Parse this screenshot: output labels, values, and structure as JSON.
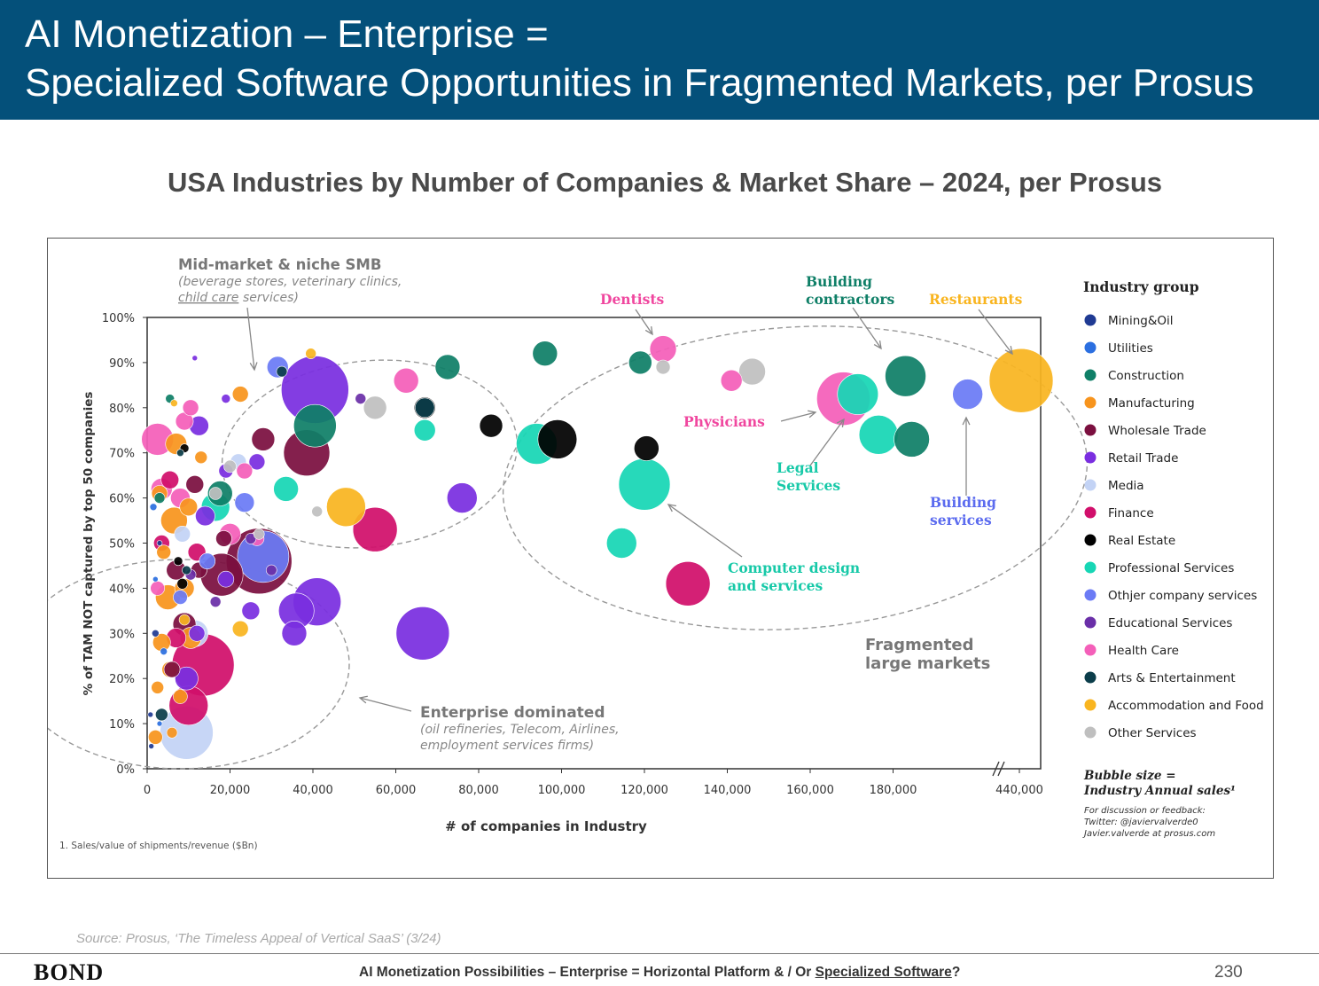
{
  "header": {
    "line1": "AI Monetization – Enterprise =",
    "line2": "Specialized Software Opportunities in Fragmented Markets, per Prosus"
  },
  "subtitle": "USA Industries by Number of Companies & Market Share – 2024, per Prosus",
  "source": "Source: Prosus, ‘The Timeless Appeal of Vertical SaaS’ (3/24)",
  "footer": {
    "logo": "BOND",
    "text_prefix": "AI Monetization Possibilities – Enterprise = Horizontal Platform & / Or ",
    "text_underlined": "Specialized Software",
    "text_suffix": "?",
    "page_number": "230"
  },
  "chart_data": {
    "type": "scatter",
    "xlabel": "# of companies in Industry",
    "ylabel": "% of TAM NOT captured by top 50 companies",
    "xlim": [
      0,
      210000
    ],
    "ylim": [
      0,
      100
    ],
    "x_ticks": [
      "0",
      "20,000",
      "40,000",
      "60,000",
      "80,000",
      "100,000",
      "120,000",
      "140,000",
      "160,000",
      "180,000",
      "440,000"
    ],
    "y_ticks": [
      "0%",
      "10%",
      "20%",
      "30%",
      "40%",
      "50%",
      "60%",
      "70%",
      "80%",
      "90%",
      "100%"
    ],
    "axis_break": "between 200,000 and 440,000",
    "footnote": "1. Sales/value of shipments/revenue ($Bn)",
    "legend": {
      "title": "Industry group",
      "placement": "right",
      "items": [
        {
          "name": "Mining&Oil",
          "color": "#1f3a93"
        },
        {
          "name": "Utilities",
          "color": "#2b6fe0"
        },
        {
          "name": "Construction",
          "color": "#0f7f67"
        },
        {
          "name": "Manufacturing",
          "color": "#f7941d"
        },
        {
          "name": "Wholesale Trade",
          "color": "#7b0f3f"
        },
        {
          "name": "Retail Trade",
          "color": "#7a2ee0"
        },
        {
          "name": "Media",
          "color": "#c3d3f5"
        },
        {
          "name": "Finance",
          "color": "#d10f6b"
        },
        {
          "name": "Real Estate",
          "color": "#000000"
        },
        {
          "name": "Professional Services",
          "color": "#17d6b5"
        },
        {
          "name": "Othjer company services",
          "color": "#6b7bf5"
        },
        {
          "name": "Educational Services",
          "color": "#6a2fa8"
        },
        {
          "name": "Health Care",
          "color": "#f45fb9"
        },
        {
          "name": "Arts & Entertainment",
          "color": "#0b3d4a"
        },
        {
          "name": "Accommodation and Food",
          "color": "#f9b520"
        },
        {
          "name": "Other Services",
          "color": "#bfbfbf"
        }
      ],
      "bubble_size_line1": "Bubble size =",
      "bubble_size_line2": "Industry Annual sales¹",
      "contact_line1": "For discussion or feedback:",
      "contact_line2": "Twitter: @javiervalverde0",
      "contact_line3": "Javier.valverde at prosus.com"
    },
    "annotations": {
      "midmarket_title": "Mid-market & niche SMB",
      "midmarket_sub1": "(beverage stores, veterinary clinics,",
      "midmarket_sub2_u": "child care",
      "midmarket_sub2_rest": " services)",
      "enterprise_title": "Enterprise dominated",
      "enterprise_sub1": "(oil refineries, Telecom, Airlines,",
      "enterprise_sub2": "employment services firms)",
      "fragmented_1": "Fragmented",
      "fragmented_2": "large markets",
      "dentists": "Dentists",
      "building_contractors_1": "Building",
      "building_contractors_2": "contractors",
      "restaurants": "Restaurants",
      "physicians": "Physicians",
      "legal_1": "Legal",
      "legal_2": "Services",
      "building_services_1": "Building",
      "building_services_2": "services",
      "computer_design_1": "Computer design",
      "computer_design_2": "and services"
    },
    "series": [
      {
        "name": "Mining&Oil",
        "points": [
          {
            "x": 1000,
            "y": 5,
            "s": 3
          },
          {
            "x": 3000,
            "y": 50,
            "s": 3
          },
          {
            "x": 2000,
            "y": 30,
            "s": 4
          },
          {
            "x": 800,
            "y": 12,
            "s": 3
          }
        ]
      },
      {
        "name": "Utilities",
        "points": [
          {
            "x": 1500,
            "y": 58,
            "s": 4
          },
          {
            "x": 4000,
            "y": 26,
            "s": 4
          },
          {
            "x": 3000,
            "y": 10,
            "s": 3
          },
          {
            "x": 2000,
            "y": 42,
            "s": 3
          }
        ]
      },
      {
        "name": "Construction",
        "points": [
          {
            "x": 40500,
            "y": 76,
            "s": 24
          },
          {
            "x": 72500,
            "y": 89,
            "s": 14
          },
          {
            "x": 96000,
            "y": 92,
            "s": 14
          },
          {
            "x": 119000,
            "y": 90,
            "s": 13
          },
          {
            "x": 17600,
            "y": 61,
            "s": 14
          },
          {
            "x": 183000,
            "y": 87,
            "s": 23
          },
          {
            "x": 184500,
            "y": 73,
            "s": 20
          },
          {
            "x": 3000,
            "y": 60,
            "s": 6
          },
          {
            "x": 5500,
            "y": 82,
            "s": 5
          }
        ]
      },
      {
        "name": "Manufacturing",
        "points": [
          {
            "x": 7000,
            "y": 72,
            "s": 12
          },
          {
            "x": 3000,
            "y": 61,
            "s": 9
          },
          {
            "x": 6500,
            "y": 55,
            "s": 15
          },
          {
            "x": 10000,
            "y": 58,
            "s": 10
          },
          {
            "x": 5000,
            "y": 38,
            "s": 14
          },
          {
            "x": 9000,
            "y": 40,
            "s": 11
          },
          {
            "x": 3500,
            "y": 28,
            "s": 10
          },
          {
            "x": 10500,
            "y": 29,
            "s": 12
          },
          {
            "x": 5500,
            "y": 22,
            "s": 9
          },
          {
            "x": 8000,
            "y": 16,
            "s": 8
          },
          {
            "x": 4000,
            "y": 48,
            "s": 8
          },
          {
            "x": 2500,
            "y": 18,
            "s": 7
          },
          {
            "x": 2000,
            "y": 7,
            "s": 8
          },
          {
            "x": 13000,
            "y": 69,
            "s": 7
          },
          {
            "x": 22500,
            "y": 83,
            "s": 9
          },
          {
            "x": 6000,
            "y": 8,
            "s": 6
          }
        ]
      },
      {
        "name": "Wholesale Trade",
        "points": [
          {
            "x": 27000,
            "y": 46,
            "s": 37
          },
          {
            "x": 38500,
            "y": 70,
            "s": 26
          },
          {
            "x": 18000,
            "y": 43,
            "s": 24
          },
          {
            "x": 28000,
            "y": 73,
            "s": 13
          },
          {
            "x": 9000,
            "y": 32,
            "s": 13
          },
          {
            "x": 7000,
            "y": 44,
            "s": 11
          },
          {
            "x": 11500,
            "y": 63,
            "s": 10
          },
          {
            "x": 6000,
            "y": 22,
            "s": 9
          },
          {
            "x": 18500,
            "y": 51,
            "s": 9
          },
          {
            "x": 12500,
            "y": 44,
            "s": 9
          }
        ]
      },
      {
        "name": "Retail Trade",
        "points": [
          {
            "x": 66500,
            "y": 30,
            "s": 30
          },
          {
            "x": 41000,
            "y": 37,
            "s": 27
          },
          {
            "x": 40500,
            "y": 84,
            "s": 38
          },
          {
            "x": 36000,
            "y": 35,
            "s": 20
          },
          {
            "x": 76000,
            "y": 60,
            "s": 17
          },
          {
            "x": 35500,
            "y": 30,
            "s": 14
          },
          {
            "x": 12500,
            "y": 76,
            "s": 11
          },
          {
            "x": 14000,
            "y": 56,
            "s": 11
          },
          {
            "x": 25000,
            "y": 35,
            "s": 10
          },
          {
            "x": 19000,
            "y": 42,
            "s": 9
          },
          {
            "x": 26500,
            "y": 68,
            "s": 9
          },
          {
            "x": 19000,
            "y": 66,
            "s": 8
          },
          {
            "x": 12000,
            "y": 30,
            "s": 9
          },
          {
            "x": 9500,
            "y": 20,
            "s": 13
          },
          {
            "x": 19000,
            "y": 82,
            "s": 5
          },
          {
            "x": 11500,
            "y": 91,
            "s": 3
          }
        ]
      },
      {
        "name": "Media",
        "points": [
          {
            "x": 9500,
            "y": 8,
            "s": 30
          },
          {
            "x": 11500,
            "y": 30,
            "s": 15
          },
          {
            "x": 8500,
            "y": 52,
            "s": 9
          },
          {
            "x": 22000,
            "y": 68,
            "s": 9
          }
        ]
      },
      {
        "name": "Finance",
        "points": [
          {
            "x": 55000,
            "y": 53,
            "s": 25
          },
          {
            "x": 130500,
            "y": 41,
            "s": 25
          },
          {
            "x": 13500,
            "y": 23,
            "s": 35
          },
          {
            "x": 10000,
            "y": 14,
            "s": 22
          },
          {
            "x": 5500,
            "y": 64,
            "s": 10
          },
          {
            "x": 12000,
            "y": 48,
            "s": 10
          },
          {
            "x": 3500,
            "y": 50,
            "s": 9
          },
          {
            "x": 7000,
            "y": 29,
            "s": 11
          }
        ]
      },
      {
        "name": "Real Estate",
        "points": [
          {
            "x": 99000,
            "y": 73,
            "s": 22
          },
          {
            "x": 120500,
            "y": 71,
            "s": 14
          },
          {
            "x": 83000,
            "y": 76,
            "s": 13
          },
          {
            "x": 67000,
            "y": 80,
            "s": 12
          },
          {
            "x": 8500,
            "y": 41,
            "s": 6
          },
          {
            "x": 7500,
            "y": 46,
            "s": 5
          },
          {
            "x": 9000,
            "y": 71,
            "s": 5
          }
        ]
      },
      {
        "name": "Professional Services",
        "points": [
          {
            "x": 120000,
            "y": 63,
            "s": 29
          },
          {
            "x": 94000,
            "y": 72,
            "s": 23
          },
          {
            "x": 171500,
            "y": 83,
            "s": 23
          },
          {
            "x": 176500,
            "y": 74,
            "s": 22
          },
          {
            "x": 114500,
            "y": 50,
            "s": 17
          },
          {
            "x": 67000,
            "y": 75,
            "s": 12
          },
          {
            "x": 33500,
            "y": 62,
            "s": 14
          },
          {
            "x": 16500,
            "y": 58,
            "s": 16
          }
        ]
      },
      {
        "name": "Othjer company services",
        "points": [
          {
            "x": 198000,
            "y": 83,
            "s": 17
          },
          {
            "x": 28000,
            "y": 47,
            "s": 29
          },
          {
            "x": 31500,
            "y": 89,
            "s": 12
          },
          {
            "x": 23500,
            "y": 59,
            "s": 11
          },
          {
            "x": 14500,
            "y": 46,
            "s": 9
          },
          {
            "x": 8000,
            "y": 38,
            "s": 8
          }
        ]
      },
      {
        "name": "Educational Services",
        "points": [
          {
            "x": 51500,
            "y": 82,
            "s": 6
          },
          {
            "x": 25000,
            "y": 51,
            "s": 6
          },
          {
            "x": 30000,
            "y": 44,
            "s": 6
          },
          {
            "x": 16500,
            "y": 37,
            "s": 6
          },
          {
            "x": 10500,
            "y": 43,
            "s": 6
          }
        ]
      },
      {
        "name": "Health Care",
        "points": [
          {
            "x": 168000,
            "y": 82,
            "s": 30
          },
          {
            "x": 124500,
            "y": 93,
            "s": 15
          },
          {
            "x": 141000,
            "y": 86,
            "s": 12
          },
          {
            "x": 62500,
            "y": 86,
            "s": 14
          },
          {
            "x": 2500,
            "y": 73,
            "s": 18
          },
          {
            "x": 3500,
            "y": 62,
            "s": 12
          },
          {
            "x": 20000,
            "y": 52,
            "s": 12
          },
          {
            "x": 9000,
            "y": 77,
            "s": 10
          },
          {
            "x": 23500,
            "y": 66,
            "s": 9
          },
          {
            "x": 8000,
            "y": 60,
            "s": 11
          },
          {
            "x": 10500,
            "y": 80,
            "s": 9
          },
          {
            "x": 2500,
            "y": 40,
            "s": 8
          },
          {
            "x": 26500,
            "y": 51,
            "s": 8
          }
        ]
      },
      {
        "name": "Arts & Entertainment",
        "points": [
          {
            "x": 67000,
            "y": 80,
            "s": 11
          },
          {
            "x": 3500,
            "y": 12,
            "s": 7
          },
          {
            "x": 32500,
            "y": 88,
            "s": 6
          },
          {
            "x": 9500,
            "y": 44,
            "s": 5
          },
          {
            "x": 8000,
            "y": 70,
            "s": 4
          }
        ]
      },
      {
        "name": "Accommodation and Food",
        "points": [
          {
            "x": 212000,
            "y": 86,
            "s": 36
          },
          {
            "x": 48000,
            "y": 58,
            "s": 22
          },
          {
            "x": 22500,
            "y": 31,
            "s": 9
          },
          {
            "x": 9000,
            "y": 33,
            "s": 6
          },
          {
            "x": 6500,
            "y": 81,
            "s": 4
          },
          {
            "x": 39500,
            "y": 92,
            "s": 6
          }
        ]
      },
      {
        "name": "Other Services",
        "points": [
          {
            "x": 146000,
            "y": 88,
            "s": 15
          },
          {
            "x": 55000,
            "y": 80,
            "s": 13
          },
          {
            "x": 124500,
            "y": 89,
            "s": 8
          },
          {
            "x": 16500,
            "y": 61,
            "s": 7
          },
          {
            "x": 20000,
            "y": 67,
            "s": 7
          },
          {
            "x": 27000,
            "y": 52,
            "s": 6
          },
          {
            "x": 41000,
            "y": 57,
            "s": 6
          }
        ]
      }
    ]
  }
}
